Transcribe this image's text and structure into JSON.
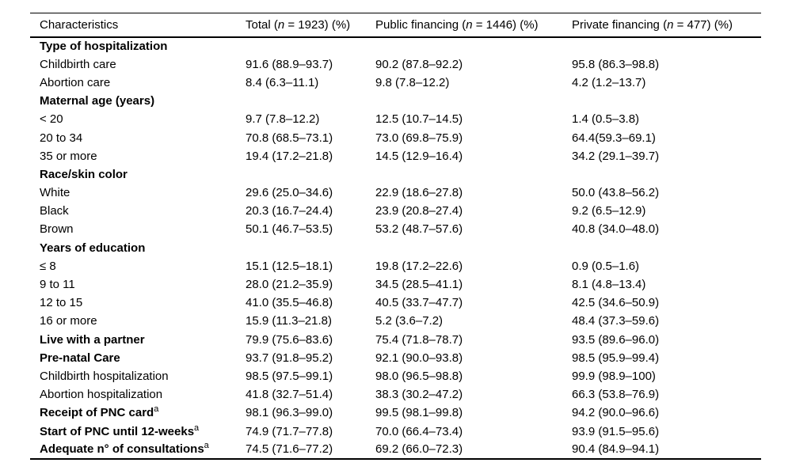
{
  "page": {
    "background": "#ffffff",
    "text_color": "#000000",
    "rule_color": "#000000"
  },
  "table": {
    "col1_header": "Characteristics",
    "col_headers": [
      {
        "prefix": "Total (",
        "italic": "n",
        "suffix": " = 1923) (%)"
      },
      {
        "prefix": "Public financing (",
        "italic": "n",
        "suffix": " = 1446) (%)"
      },
      {
        "prefix": "Private financing (",
        "italic": "n",
        "suffix": " = 477) (%)"
      }
    ],
    "rows": [
      {
        "label": "Type of hospitalization",
        "bold": true,
        "sup": "",
        "values": [
          "",
          "",
          ""
        ]
      },
      {
        "label": "Childbirth care",
        "bold": false,
        "sup": "",
        "values": [
          "91.6 (88.9–93.7)",
          "90.2 (87.8–92.2)",
          "95.8 (86.3–98.8)"
        ]
      },
      {
        "label": "Abortion care",
        "bold": false,
        "sup": "",
        "values": [
          "8.4 (6.3–11.1)",
          "9.8 (7.8–12.2)",
          "4.2 (1.2–13.7)"
        ]
      },
      {
        "label": "Maternal age (years)",
        "bold": true,
        "sup": "",
        "values": [
          "",
          "",
          ""
        ]
      },
      {
        "label": "< 20",
        "bold": false,
        "sup": "",
        "values": [
          "9.7 (7.8–12.2)",
          "12.5 (10.7–14.5)",
          "1.4 (0.5–3.8)"
        ]
      },
      {
        "label": "20 to 34",
        "bold": false,
        "sup": "",
        "values": [
          "70.8 (68.5–73.1)",
          "73.0 (69.8–75.9)",
          "64.4(59.3–69.1)"
        ]
      },
      {
        "label": "35 or more",
        "bold": false,
        "sup": "",
        "values": [
          "19.4 (17.2–21.8)",
          "14.5 (12.9–16.4)",
          "34.2 (29.1–39.7)"
        ]
      },
      {
        "label": "Race/skin color",
        "bold": true,
        "sup": "",
        "values": [
          "",
          "",
          ""
        ]
      },
      {
        "label": "White",
        "bold": false,
        "sup": "",
        "values": [
          "29.6 (25.0–34.6)",
          "22.9 (18.6–27.8)",
          "50.0 (43.8–56.2)"
        ]
      },
      {
        "label": "Black",
        "bold": false,
        "sup": "",
        "values": [
          "20.3 (16.7–24.4)",
          "23.9 (20.8–27.4)",
          "9.2 (6.5–12.9)"
        ]
      },
      {
        "label": "Brown",
        "bold": false,
        "sup": "",
        "values": [
          "50.1 (46.7–53.5)",
          "53.2 (48.7–57.6)",
          "40.8 (34.0–48.0)"
        ]
      },
      {
        "label": "Years of education",
        "bold": true,
        "sup": "",
        "values": [
          "",
          "",
          ""
        ]
      },
      {
        "label": "≤ 8",
        "bold": false,
        "sup": "",
        "values": [
          "15.1 (12.5–18.1)",
          "19.8 (17.2–22.6)",
          "0.9 (0.5–1.6)"
        ]
      },
      {
        "label": "9 to 11",
        "bold": false,
        "sup": "",
        "values": [
          "28.0 (21.2–35.9)",
          "34.5 (28.5–41.1)",
          "8.1 (4.8–13.4)"
        ]
      },
      {
        "label": "12 to 15",
        "bold": false,
        "sup": "",
        "values": [
          "41.0 (35.5–46.8)",
          "40.5 (33.7–47.7)",
          "42.5 (34.6–50.9)"
        ]
      },
      {
        "label": "16 or more",
        "bold": false,
        "sup": "",
        "values": [
          "15.9 (11.3–21.8)",
          "5.2 (3.6–7.2)",
          "48.4 (37.3–59.6)"
        ]
      },
      {
        "label": "Live with a partner",
        "bold": true,
        "sup": "",
        "values": [
          "79.9 (75.6–83.6)",
          "75.4 (71.8–78.7)",
          "93.5 (89.6–96.0)"
        ]
      },
      {
        "label": "Pre-natal Care",
        "bold": true,
        "sup": "",
        "values": [
          "93.7 (91.8–95.2)",
          "92.1 (90.0–93.8)",
          "98.5 (95.9–99.4)"
        ]
      },
      {
        "label": "Childbirth hospitalization",
        "bold": false,
        "sup": "",
        "values": [
          "98.5 (97.5–99.1)",
          "98.0 (96.5–98.8)",
          "99.9 (98.9–100)"
        ]
      },
      {
        "label": "Abortion hospitalization",
        "bold": false,
        "sup": "",
        "values": [
          "41.8 (32.7–51.4)",
          "38.3 (30.2–47.2)",
          "66.3 (53.8–76.9)"
        ]
      },
      {
        "label": "Receipt of PNC card",
        "bold": true,
        "sup": "a",
        "values": [
          "98.1 (96.3–99.0)",
          "99.5 (98.1–99.8)",
          "94.2 (90.0–96.6)"
        ]
      },
      {
        "label": "Start of PNC until 12-weeks",
        "bold": true,
        "sup": "a",
        "values": [
          "74.9 (71.7–77.8)",
          "70.0 (66.4–73.4)",
          "93.9 (91.5–95.6)"
        ]
      },
      {
        "label": "Adequate n° of consultations",
        "bold": true,
        "sup": "a",
        "values": [
          "74.5 (71.6–77.2)",
          "69.2 (66.0–72.3)",
          "90.4 (84.9–94.1)"
        ]
      }
    ]
  }
}
